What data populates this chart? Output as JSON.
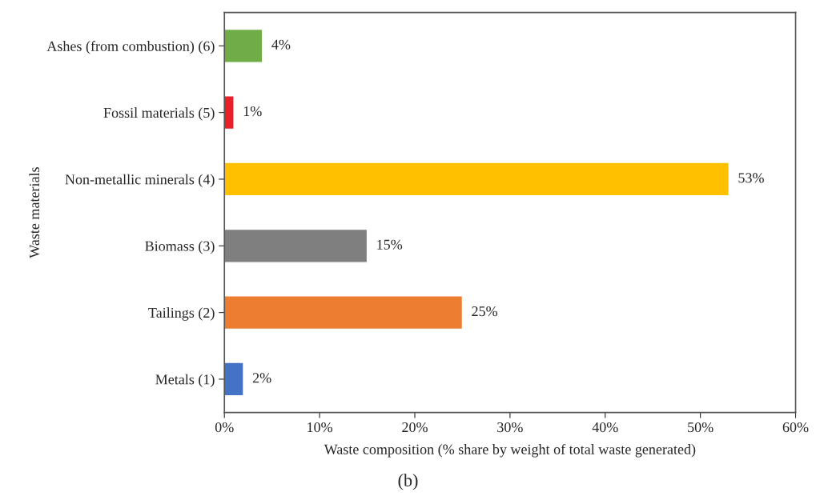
{
  "chart_data": {
    "type": "bar",
    "orientation": "horizontal",
    "categories": [
      "Ashes (from combustion) (6)",
      "Fossil materials (5)",
      "Non-metallic minerals (4)",
      "Biomass (3)",
      "Tailings (2)",
      "Metals (1)"
    ],
    "values": [
      4,
      1,
      53,
      15,
      25,
      2
    ],
    "value_labels": [
      "4%",
      "1%",
      "53%",
      "15%",
      "25%",
      "2%"
    ],
    "colors": [
      "#70ad47",
      "#e8202a",
      "#ffc000",
      "#7f7f7f",
      "#ed7d31",
      "#4472c4"
    ],
    "xlabel": "Waste composition (% share by weight of total waste generated)",
    "ylabel": "Waste materials",
    "xlim": [
      0,
      60
    ],
    "xticks": [
      {
        "value": 0,
        "label": "0%"
      },
      {
        "value": 10,
        "label": "10%"
      },
      {
        "value": 20,
        "label": "20%"
      },
      {
        "value": 30,
        "label": "30%"
      },
      {
        "value": 40,
        "label": "40%"
      },
      {
        "value": 50,
        "label": "50%"
      },
      {
        "value": 60,
        "label": "60%"
      }
    ],
    "annotations": [
      "(b)"
    ],
    "grid": false,
    "legend": false
  }
}
